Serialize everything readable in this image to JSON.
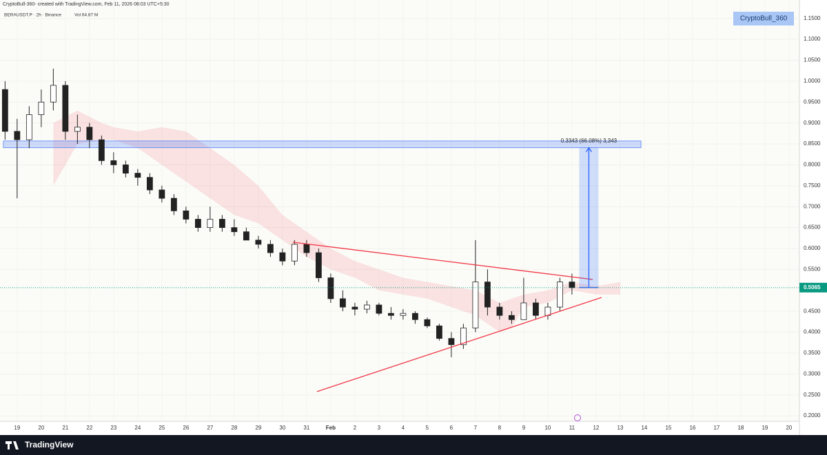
{
  "header": {
    "caption": "CryptoBull-360- created with TradingView.com, Feb 11, 2026 08:03 UTC+5:30",
    "symbol": "BERAUSDT.P · 2h · Binance",
    "volume": "Vol 64.87 M",
    "badge": "CryptoBull_360"
  },
  "footer": {
    "brand": "TradingView"
  },
  "chart_data": {
    "type": "candlestick",
    "x": [
      18.5,
      19,
      19.5,
      20,
      20.5,
      21,
      21.5,
      22,
      22.5,
      23,
      23.5,
      24,
      24.5,
      25,
      25.5,
      26,
      26.5,
      27,
      27.5,
      28,
      28.5,
      29,
      29.5,
      30,
      30.5,
      31,
      31.5,
      32,
      32.5,
      33,
      33.5,
      34,
      34.5,
      35,
      35.5,
      36,
      36.5,
      37,
      37.5,
      38,
      38.5,
      39,
      39.5,
      40,
      40.5,
      41,
      41.5,
      42
    ],
    "open": [
      0.98,
      0.88,
      0.86,
      0.92,
      0.95,
      0.99,
      0.88,
      0.89,
      0.86,
      0.81,
      0.8,
      0.78,
      0.77,
      0.74,
      0.72,
      0.69,
      0.67,
      0.65,
      0.67,
      0.65,
      0.64,
      0.62,
      0.61,
      0.59,
      0.57,
      0.61,
      0.59,
      0.53,
      0.48,
      0.46,
      0.455,
      0.465,
      0.445,
      0.44,
      0.445,
      0.43,
      0.415,
      0.385,
      0.37,
      0.41,
      0.52,
      0.46,
      0.44,
      0.43,
      0.47,
      0.44,
      0.46,
      0.52
    ],
    "high": [
      1.0,
      0.91,
      0.94,
      0.98,
      1.03,
      1.0,
      0.92,
      0.9,
      0.87,
      0.83,
      0.81,
      0.79,
      0.78,
      0.75,
      0.73,
      0.7,
      0.68,
      0.7,
      0.68,
      0.67,
      0.65,
      0.63,
      0.62,
      0.6,
      0.62,
      0.62,
      0.6,
      0.54,
      0.5,
      0.47,
      0.475,
      0.47,
      0.46,
      0.455,
      0.45,
      0.435,
      0.42,
      0.4,
      0.42,
      0.62,
      0.55,
      0.47,
      0.45,
      0.53,
      0.48,
      0.47,
      0.53,
      0.54
    ],
    "low": [
      0.86,
      0.72,
      0.84,
      0.89,
      0.93,
      0.86,
      0.85,
      0.84,
      0.8,
      0.78,
      0.77,
      0.75,
      0.73,
      0.71,
      0.68,
      0.66,
      0.64,
      0.64,
      0.64,
      0.63,
      0.62,
      0.6,
      0.58,
      0.56,
      0.56,
      0.58,
      0.52,
      0.47,
      0.45,
      0.44,
      0.445,
      0.44,
      0.43,
      0.43,
      0.42,
      0.41,
      0.38,
      0.34,
      0.36,
      0.4,
      0.44,
      0.43,
      0.42,
      0.43,
      0.43,
      0.43,
      0.45,
      0.49
    ],
    "close": [
      0.88,
      0.86,
      0.92,
      0.95,
      0.99,
      0.88,
      0.89,
      0.86,
      0.81,
      0.8,
      0.78,
      0.77,
      0.74,
      0.72,
      0.69,
      0.67,
      0.65,
      0.67,
      0.65,
      0.64,
      0.62,
      0.61,
      0.59,
      0.57,
      0.61,
      0.59,
      0.53,
      0.48,
      0.46,
      0.455,
      0.465,
      0.445,
      0.44,
      0.445,
      0.43,
      0.415,
      0.385,
      0.37,
      0.41,
      0.52,
      0.46,
      0.44,
      0.43,
      0.47,
      0.44,
      0.46,
      0.52,
      0.5065
    ],
    "up_color": "#089981",
    "down_color": "#f23645",
    "last_price": 0.5065,
    "xlim": [
      18.29,
      51.43
    ],
    "xticks": [
      19,
      20,
      21,
      22,
      23,
      24,
      25,
      26,
      27,
      28,
      29,
      30,
      31,
      {
        "value": 32,
        "label": "Feb"
      },
      {
        "value": 33,
        "label": "2"
      },
      {
        "value": 34,
        "label": "3"
      },
      {
        "value": 35,
        "label": "4"
      },
      {
        "value": 36,
        "label": "5"
      },
      {
        "value": 37,
        "label": "6"
      },
      {
        "value": 38,
        "label": "7"
      },
      {
        "value": 39,
        "label": "8"
      },
      {
        "value": 40,
        "label": "9"
      },
      {
        "value": 41,
        "label": "10"
      },
      {
        "value": 42,
        "label": "11"
      },
      {
        "value": 43,
        "label": "12"
      },
      {
        "value": 44,
        "label": "13"
      },
      {
        "value": 45,
        "label": "14"
      },
      {
        "value": 46,
        "label": "15"
      },
      {
        "value": 47,
        "label": "16"
      },
      {
        "value": 48,
        "label": "17"
      },
      {
        "value": 49,
        "label": "18"
      },
      {
        "value": 50,
        "label": "19"
      },
      {
        "value": 51,
        "label": "20"
      }
    ],
    "ylim": [
      0.187,
      1.194
    ],
    "yticks": [
      {
        "value": 0.2,
        "label": "0.2000"
      },
      {
        "value": 0.25,
        "label": "0.2500"
      },
      {
        "value": 0.3,
        "label": "0.3000"
      },
      {
        "value": 0.35,
        "label": "0.3500"
      },
      {
        "value": 0.4,
        "label": "0.4000"
      },
      {
        "value": 0.45,
        "label": "0.4500"
      },
      {
        "value": 0.55,
        "label": "0.5500"
      },
      {
        "value": 0.6,
        "label": "0.6000"
      },
      {
        "value": 0.65,
        "label": "0.6500"
      },
      {
        "value": 0.7,
        "label": "0.7000"
      },
      {
        "value": 0.75,
        "label": "0.7500"
      },
      {
        "value": 0.8,
        "label": "0.8000"
      },
      {
        "value": 0.85,
        "label": "0.8500"
      },
      {
        "value": 0.9,
        "label": "0.9000"
      },
      {
        "value": 0.95,
        "label": "0.9500"
      },
      {
        "value": 1.0,
        "label": "1.0000"
      },
      {
        "value": 1.05,
        "label": "1.0500"
      },
      {
        "value": 1.1,
        "label": "1.1000"
      },
      {
        "value": 1.15,
        "label": "1.1500"
      }
    ],
    "cloud": {
      "color": "#f23645",
      "x": [
        20.5,
        21.5,
        22.5,
        23,
        24,
        25,
        26,
        27,
        28,
        29,
        30,
        31,
        32,
        33,
        34,
        35,
        36,
        37,
        38,
        39,
        39.5,
        40,
        41,
        42,
        43,
        44
      ],
      "upper": [
        0.9,
        0.93,
        0.9,
        0.89,
        0.88,
        0.89,
        0.88,
        0.84,
        0.8,
        0.75,
        0.68,
        0.64,
        0.6,
        0.57,
        0.55,
        0.53,
        0.52,
        0.51,
        0.5,
        0.47,
        0.48,
        0.49,
        0.5,
        0.52,
        0.51,
        0.52
      ],
      "lower": [
        0.75,
        0.85,
        0.86,
        0.86,
        0.84,
        0.8,
        0.76,
        0.72,
        0.68,
        0.66,
        0.62,
        0.58,
        0.55,
        0.53,
        0.5,
        0.49,
        0.48,
        0.46,
        0.44,
        0.4,
        0.41,
        0.46,
        0.47,
        0.5,
        0.49,
        0.49
      ]
    },
    "zone": {
      "x": [
        18.43,
        44.86
      ],
      "low": 0.841,
      "high": 0.857
    },
    "measure": {
      "x": [
        42.3,
        43.1
      ],
      "from": 0.5065,
      "to": 0.8408,
      "label": "0.3343 (66.08%) 3,343"
    },
    "trendlines": [
      {
        "x": [
          30.43,
          42.86
        ],
        "y": [
          0.615,
          0.526
        ],
        "color": "#f23645"
      },
      {
        "x": [
          31.43,
          43.23
        ],
        "y": [
          0.258,
          0.483
        ],
        "color": "#f23645"
      }
    ]
  }
}
